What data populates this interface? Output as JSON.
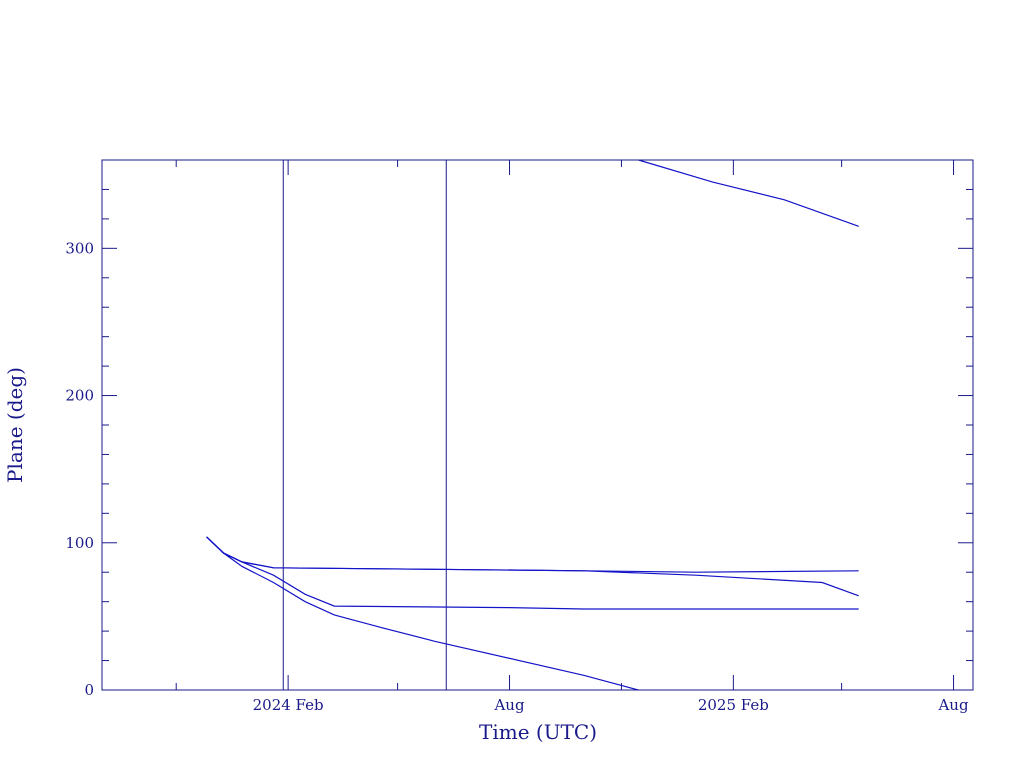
{
  "chart_data": {
    "type": "line",
    "xlabel": "Time (UTC)",
    "ylabel": "Plane (deg)",
    "xlim": [
      "2023-09-01",
      "2025-08-17"
    ],
    "ylim": [
      0,
      360
    ],
    "x_ticks": [
      {
        "date": "2024-02-01",
        "label": "2024 Feb"
      },
      {
        "date": "2024-08-01",
        "label": "Aug"
      },
      {
        "date": "2025-02-01",
        "label": "2025 Feb"
      },
      {
        "date": "2025-08-01",
        "label": "Aug"
      }
    ],
    "y_ticks": [
      0,
      100,
      200,
      300
    ],
    "vertical_lines": [
      "2024-01-28",
      "2024-06-10"
    ],
    "colors": {
      "axes": "#1a1a8a",
      "lines": "#1414c8"
    },
    "series": [
      {
        "points": [
          [
            "2023-11-26",
            104
          ],
          [
            "2023-12-10",
            93
          ],
          [
            "2023-12-25",
            87
          ],
          [
            "2024-01-20",
            83
          ],
          [
            "2024-06-01",
            82
          ],
          [
            "2024-10-01",
            81
          ],
          [
            "2025-01-01",
            80
          ],
          [
            "2025-05-15",
            81
          ]
        ]
      },
      {
        "points": [
          [
            "2023-11-26",
            104
          ],
          [
            "2023-12-10",
            93
          ],
          [
            "2023-12-25",
            87
          ],
          [
            "2024-01-20",
            83
          ],
          [
            "2024-06-01",
            82
          ],
          [
            "2024-10-01",
            81
          ],
          [
            "2025-01-01",
            78
          ],
          [
            "2025-04-15",
            73
          ],
          [
            "2025-05-15",
            64
          ]
        ]
      },
      {
        "points": [
          [
            "2023-11-26",
            104
          ],
          [
            "2023-12-10",
            93
          ],
          [
            "2023-12-25",
            87
          ],
          [
            "2024-01-20",
            78
          ],
          [
            "2024-02-15",
            65
          ],
          [
            "2024-03-10",
            57
          ],
          [
            "2024-08-01",
            56
          ],
          [
            "2024-10-01",
            55
          ],
          [
            "2025-05-15",
            55
          ]
        ]
      },
      {
        "points": [
          [
            "2023-11-26",
            104
          ],
          [
            "2023-12-10",
            93
          ],
          [
            "2023-12-25",
            84
          ],
          [
            "2024-01-20",
            73
          ],
          [
            "2024-02-15",
            60
          ],
          [
            "2024-03-10",
            51
          ],
          [
            "2024-04-15",
            43
          ],
          [
            "2024-06-01",
            33
          ],
          [
            "2024-10-01",
            10
          ],
          [
            "2024-11-15",
            0
          ]
        ]
      },
      {
        "points": [
          [
            "2024-11-15",
            360
          ],
          [
            "2025-01-15",
            345
          ],
          [
            "2025-03-15",
            333
          ],
          [
            "2025-05-15",
            315
          ]
        ]
      }
    ]
  }
}
